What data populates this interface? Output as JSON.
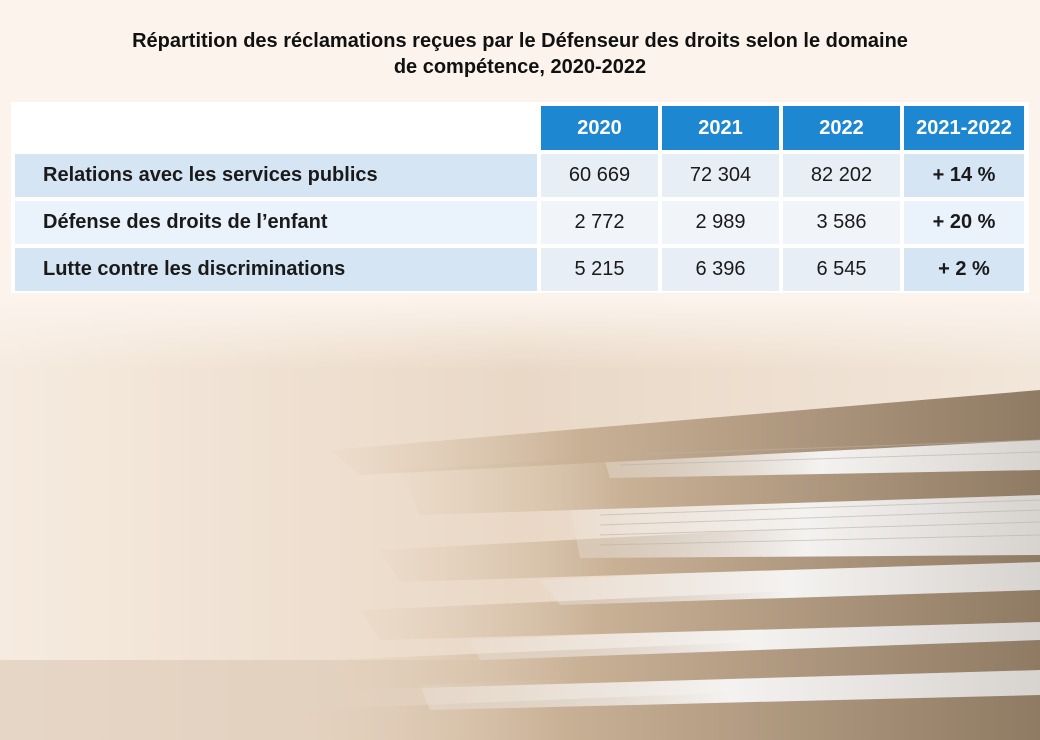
{
  "title": {
    "line1": "Répartition des réclamations reçues par le Défenseur des droits selon le domaine",
    "line2": "de compétence, 2020-2022"
  },
  "table": {
    "headers": [
      "2020",
      "2021",
      "2022",
      "2021-2022"
    ],
    "rows": [
      {
        "label": "Relations avec les services publics",
        "values": [
          "60 669",
          "72 304",
          "82 202"
        ],
        "change": "+ 14 %"
      },
      {
        "label": "Défense des droits de l’enfant",
        "values": [
          "2 772",
          "2 989",
          "3 586"
        ],
        "change": "+ 20 %"
      },
      {
        "label": "Lutte contre les discriminations",
        "values": [
          "5 215",
          "6 396",
          "6 545"
        ],
        "change": "+ 2 %"
      }
    ]
  },
  "colors": {
    "header_blue": "#1e87d2",
    "row_blue": "#d6e5f4",
    "background": "#fbf3ec"
  },
  "image": {
    "subject": "stack-of-file-folders"
  }
}
